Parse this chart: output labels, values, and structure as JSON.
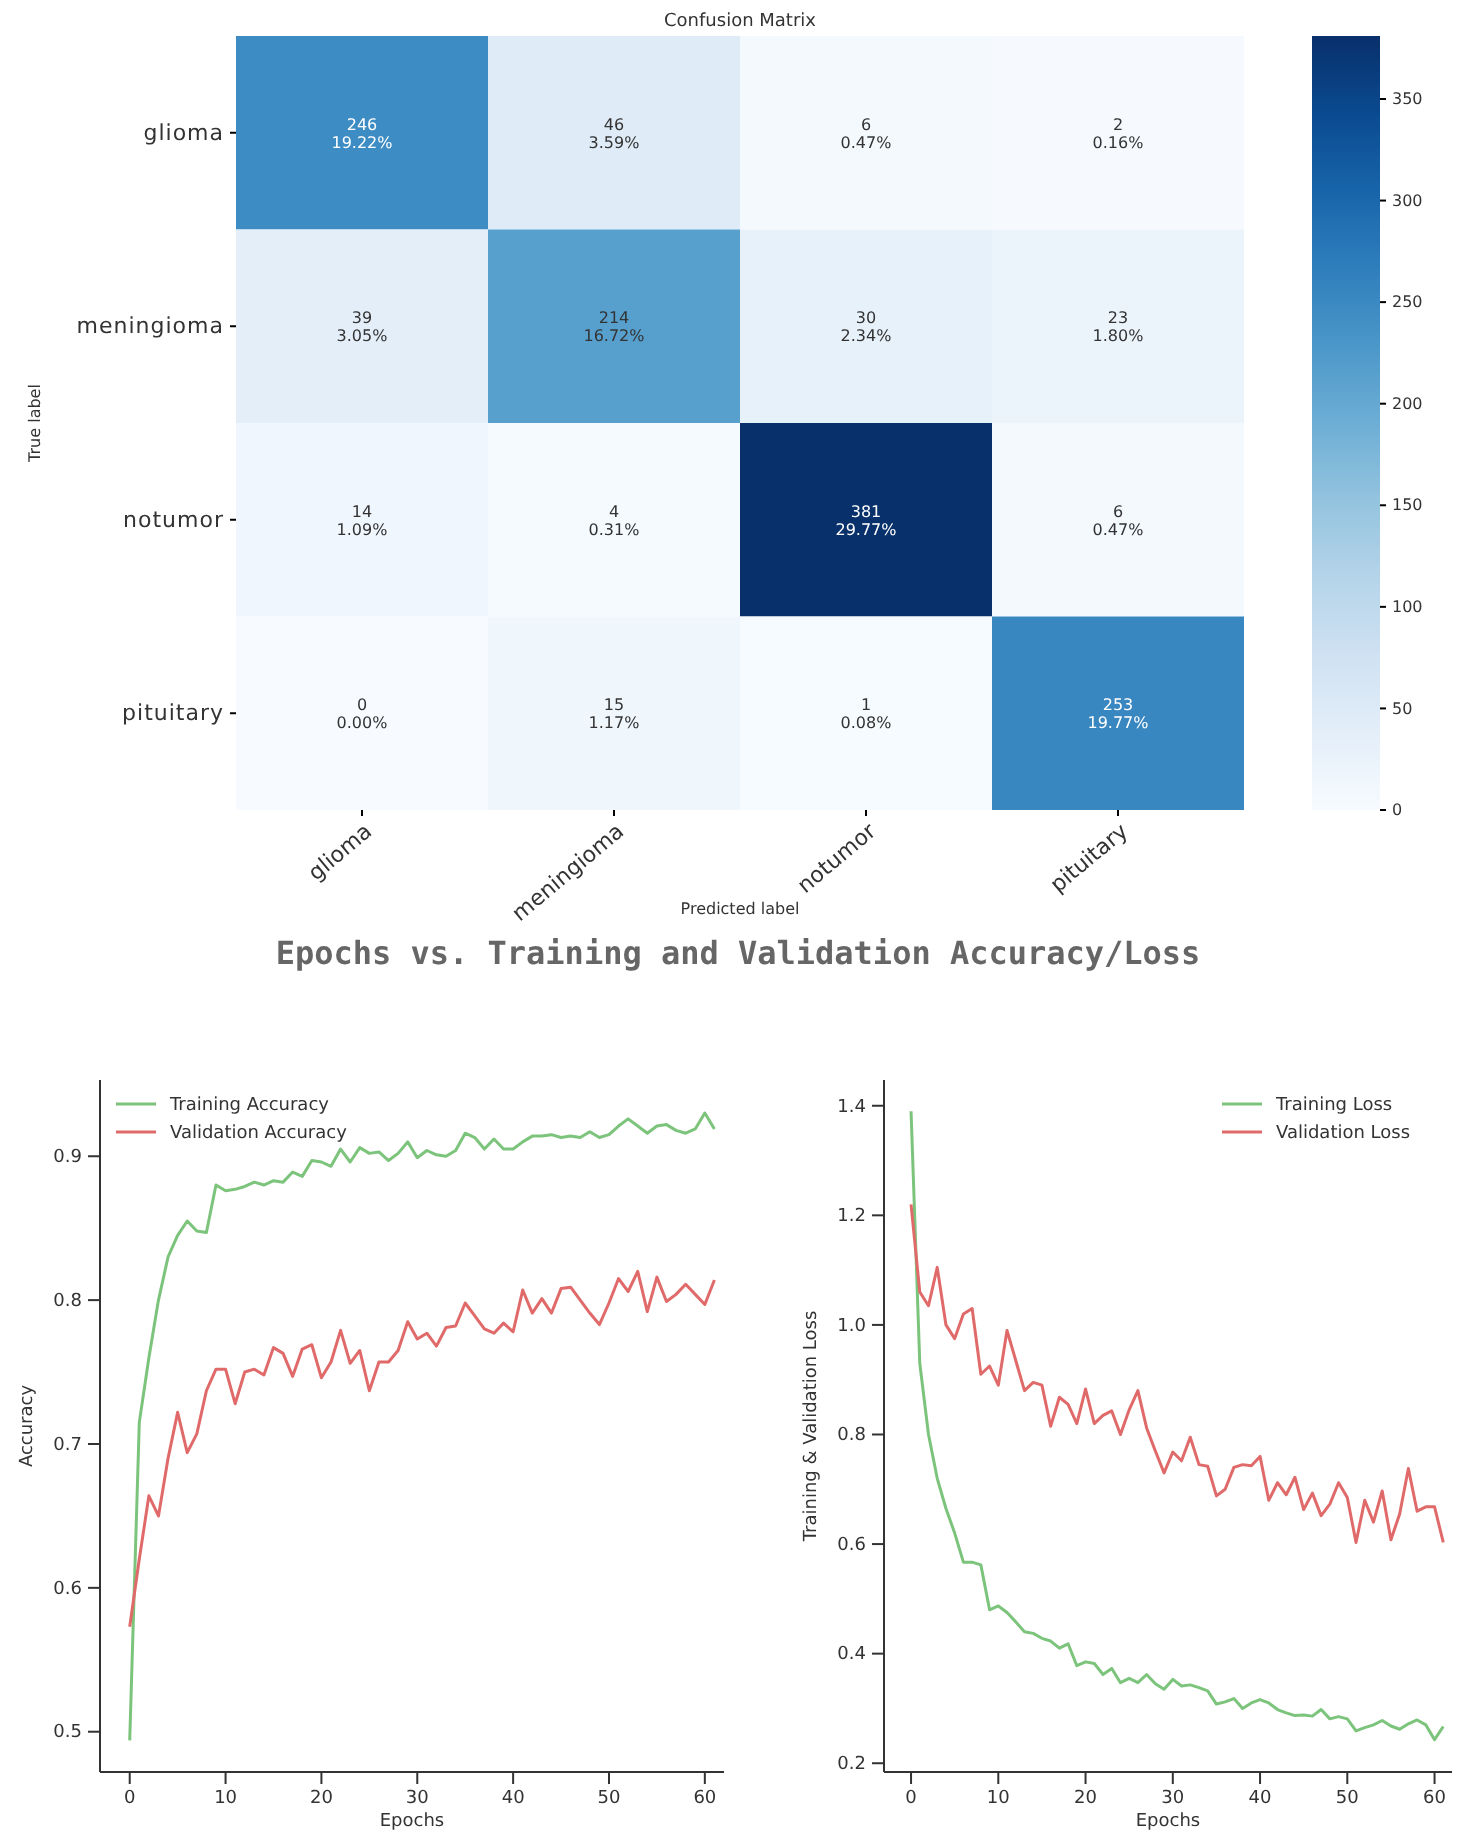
{
  "chart_data": [
    {
      "type": "heatmap",
      "title": "Confusion Matrix",
      "xlabel": "Predicted label",
      "ylabel": "True label",
      "categories": [
        "glioma",
        "meningioma",
        "notumor",
        "pituitary"
      ],
      "y_categories": [
        "glioma",
        "meningioma",
        "notumor",
        "pituitary"
      ],
      "cells": [
        [
          246,
          46,
          6,
          2
        ],
        [
          39,
          214,
          30,
          23
        ],
        [
          14,
          4,
          381,
          6
        ],
        [
          0,
          15,
          1,
          253
        ]
      ],
      "cell_labels": [
        [
          "246\n19.22%",
          "46\n3.59%",
          "6\n0.47%",
          "2\n0.16%"
        ],
        [
          "39\n3.05%",
          "214\n16.72%",
          "30\n2.34%",
          "23\n1.80%"
        ],
        [
          "14\n1.09%",
          "4\n0.31%",
          "381\n29.77%",
          "6\n0.47%"
        ],
        [
          "0\n0.00%",
          "15\n1.17%",
          "1\n0.08%",
          "253\n19.77%"
        ]
      ],
      "clim": [
        0,
        381
      ],
      "cticks": [
        0,
        50,
        100,
        150,
        200,
        250,
        300,
        350
      ]
    },
    {
      "type": "line",
      "title": "Epochs vs. Training and Validation Accuracy/Loss",
      "xlabel": "Epochs",
      "ylabel": "Accuracy",
      "x": [
        0,
        1,
        2,
        3,
        4,
        5,
        6,
        7,
        8,
        9,
        10,
        11,
        12,
        13,
        14,
        15,
        16,
        17,
        18,
        19,
        20,
        21,
        22,
        23,
        24,
        25,
        26,
        27,
        28,
        29,
        30,
        31,
        32,
        33,
        34,
        35,
        36,
        37,
        38,
        39,
        40,
        41,
        42,
        43,
        44,
        45,
        46,
        47,
        48,
        49,
        50,
        51,
        52,
        53,
        54,
        55,
        56,
        57,
        58,
        59,
        60,
        61
      ],
      "series": [
        {
          "name": "Training Accuracy",
          "color": "#7cc47c",
          "values": [
            0.494,
            0.715,
            0.76,
            0.8,
            0.83,
            0.845,
            0.855,
            0.848,
            0.847,
            0.88,
            0.876,
            0.877,
            0.879,
            0.882,
            0.88,
            0.883,
            0.882,
            0.889,
            0.886,
            0.897,
            0.896,
            0.893,
            0.905,
            0.896,
            0.906,
            0.902,
            0.903,
            0.897,
            0.902,
            0.91,
            0.899,
            0.904,
            0.901,
            0.9,
            0.904,
            0.916,
            0.913,
            0.905,
            0.912,
            0.905,
            0.905,
            0.91,
            0.914,
            0.914,
            0.915,
            0.913,
            0.914,
            0.913,
            0.917,
            0.913,
            0.915,
            0.921,
            0.926,
            0.921,
            0.916,
            0.921,
            0.922,
            0.918,
            0.916,
            0.919,
            0.93,
            0.919
          ]
        },
        {
          "name": "Validation Accuracy",
          "color": "#e06a6a",
          "values": [
            0.573,
            0.62,
            0.664,
            0.65,
            0.69,
            0.722,
            0.694,
            0.707,
            0.737,
            0.752,
            0.752,
            0.728,
            0.75,
            0.752,
            0.748,
            0.767,
            0.763,
            0.747,
            0.766,
            0.769,
            0.746,
            0.757,
            0.779,
            0.756,
            0.765,
            0.737,
            0.757,
            0.757,
            0.765,
            0.785,
            0.773,
            0.777,
            0.768,
            0.781,
            0.782,
            0.798,
            0.789,
            0.78,
            0.777,
            0.784,
            0.778,
            0.807,
            0.791,
            0.801,
            0.791,
            0.808,
            0.809,
            0.8,
            0.791,
            0.783,
            0.798,
            0.815,
            0.806,
            0.82,
            0.792,
            0.816,
            0.799,
            0.804,
            0.811,
            0.804,
            0.797,
            0.814
          ]
        }
      ],
      "xlim": [
        -3.1,
        62
      ],
      "xticks": [
        0,
        10,
        20,
        30,
        40,
        50,
        60
      ],
      "ylim": [
        0.472,
        0.953
      ],
      "yticks": [
        0.5,
        0.6,
        0.7,
        0.8,
        0.9
      ],
      "grid": false,
      "legend": "top left"
    },
    {
      "type": "line",
      "xlabel": "Epochs",
      "ylabel": "Training & Validation Loss",
      "x": [
        0,
        1,
        2,
        3,
        4,
        5,
        6,
        7,
        8,
        9,
        10,
        11,
        12,
        13,
        14,
        15,
        16,
        17,
        18,
        19,
        20,
        21,
        22,
        23,
        24,
        25,
        26,
        27,
        28,
        29,
        30,
        31,
        32,
        33,
        34,
        35,
        36,
        37,
        38,
        39,
        40,
        41,
        42,
        43,
        44,
        45,
        46,
        47,
        48,
        49,
        50,
        51,
        52,
        53,
        54,
        55,
        56,
        57,
        58,
        59,
        60,
        61
      ],
      "series": [
        {
          "name": "Training Loss",
          "color": "#7cc47c",
          "values": [
            1.39,
            0.93,
            0.8,
            0.72,
            0.665,
            0.62,
            0.567,
            0.567,
            0.562,
            0.48,
            0.487,
            0.475,
            0.458,
            0.44,
            0.437,
            0.428,
            0.423,
            0.41,
            0.418,
            0.378,
            0.385,
            0.382,
            0.362,
            0.373,
            0.347,
            0.355,
            0.347,
            0.362,
            0.345,
            0.335,
            0.353,
            0.341,
            0.343,
            0.338,
            0.332,
            0.308,
            0.312,
            0.318,
            0.3,
            0.31,
            0.316,
            0.31,
            0.298,
            0.292,
            0.287,
            0.288,
            0.286,
            0.298,
            0.281,
            0.285,
            0.281,
            0.259,
            0.265,
            0.27,
            0.278,
            0.268,
            0.262,
            0.272,
            0.279,
            0.27,
            0.243,
            0.267
          ]
        },
        {
          "name": "Validation Loss",
          "color": "#e06a6a",
          "values": [
            1.22,
            1.06,
            1.035,
            1.105,
            1.0,
            0.975,
            1.02,
            1.03,
            0.91,
            0.925,
            0.89,
            0.99,
            0.935,
            0.88,
            0.895,
            0.89,
            0.815,
            0.868,
            0.855,
            0.82,
            0.883,
            0.82,
            0.835,
            0.843,
            0.8,
            0.845,
            0.88,
            0.812,
            0.77,
            0.73,
            0.768,
            0.752,
            0.795,
            0.745,
            0.742,
            0.688,
            0.7,
            0.74,
            0.745,
            0.743,
            0.76,
            0.68,
            0.712,
            0.69,
            0.722,
            0.663,
            0.693,
            0.652,
            0.673,
            0.712,
            0.685,
            0.603,
            0.68,
            0.64,
            0.697,
            0.608,
            0.655,
            0.738,
            0.66,
            0.668,
            0.668,
            0.603
          ]
        }
      ],
      "xlim": [
        -3.1,
        62
      ],
      "xticks": [
        0,
        10,
        20,
        30,
        40,
        50,
        60
      ],
      "ylim": [
        0.184,
        1.447
      ],
      "yticks": [
        0.2,
        0.4,
        0.6,
        0.8,
        {
          "value": 1.0,
          "label": "1.0"
        },
        1.2,
        1.4
      ],
      "grid": false,
      "legend": "top right"
    }
  ]
}
